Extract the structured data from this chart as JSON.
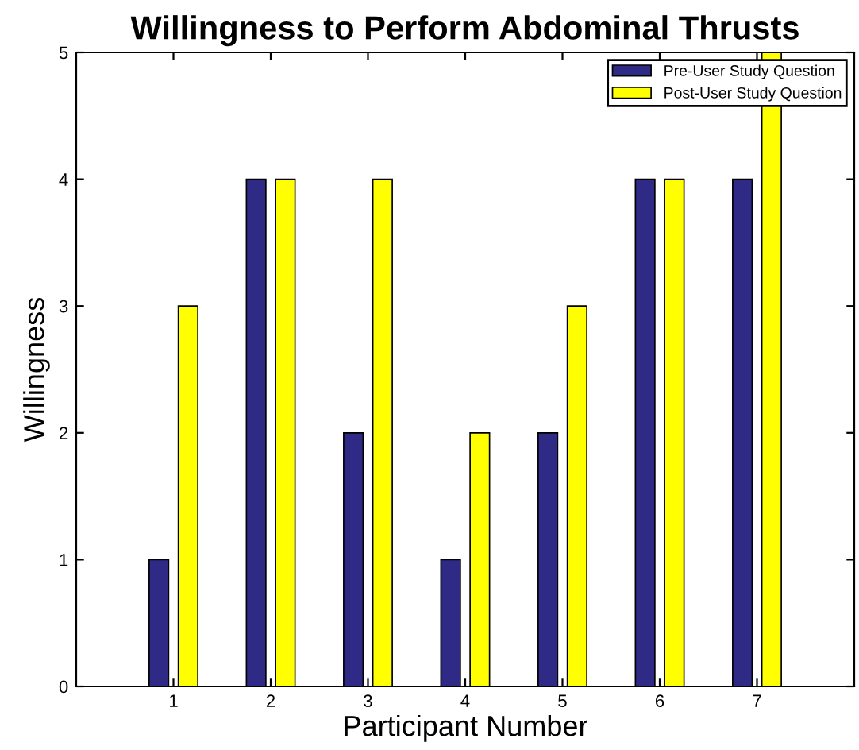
{
  "chart_data": {
    "type": "bar",
    "title": "Willingness to Perform Abdominal Thrusts",
    "xlabel": "Participant Number",
    "ylabel": "Willingness",
    "categories": [
      "1",
      "2",
      "3",
      "4",
      "5",
      "6",
      "7"
    ],
    "series": [
      {
        "name": "Pre-User Study Question",
        "color": "#2e2a85",
        "values": [
          1,
          4,
          2,
          1,
          2,
          4,
          4
        ]
      },
      {
        "name": "Post-User Study Question",
        "color": "#ffff00",
        "values": [
          3,
          4,
          4,
          2,
          3,
          4,
          5
        ]
      }
    ],
    "ylim": [
      0,
      5
    ],
    "yticks": [
      0,
      1,
      2,
      3,
      4,
      5
    ],
    "grid": false,
    "legend": "top right"
  }
}
